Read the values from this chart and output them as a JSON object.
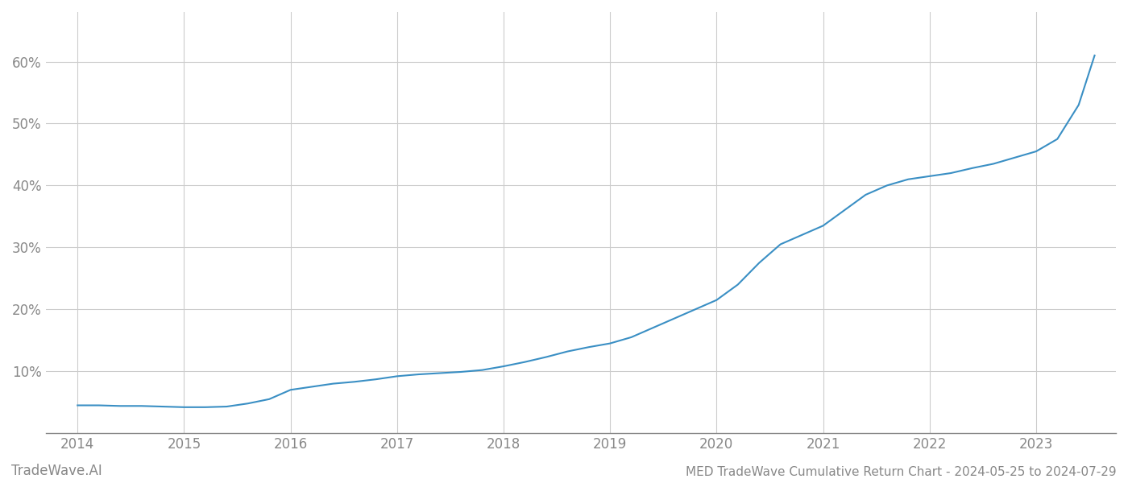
{
  "title": "MED TradeWave Cumulative Return Chart - 2024-05-25 to 2024-07-29",
  "watermark": "TradeWave.AI",
  "x_values": [
    2014.0,
    2014.2,
    2014.4,
    2014.6,
    2014.8,
    2015.0,
    2015.2,
    2015.4,
    2015.6,
    2015.8,
    2016.0,
    2016.2,
    2016.4,
    2016.6,
    2016.8,
    2017.0,
    2017.2,
    2017.4,
    2017.6,
    2017.8,
    2018.0,
    2018.2,
    2018.4,
    2018.6,
    2018.8,
    2019.0,
    2019.2,
    2019.4,
    2019.6,
    2019.8,
    2020.0,
    2020.2,
    2020.4,
    2020.6,
    2020.8,
    2021.0,
    2021.2,
    2021.4,
    2021.6,
    2021.8,
    2022.0,
    2022.2,
    2022.4,
    2022.6,
    2022.8,
    2023.0,
    2023.2,
    2023.4,
    2023.55
  ],
  "y_values": [
    4.5,
    4.5,
    4.4,
    4.4,
    4.3,
    4.2,
    4.2,
    4.3,
    4.8,
    5.5,
    7.0,
    7.5,
    8.0,
    8.3,
    8.7,
    9.2,
    9.5,
    9.7,
    9.9,
    10.2,
    10.8,
    11.5,
    12.3,
    13.2,
    13.9,
    14.5,
    15.5,
    17.0,
    18.5,
    20.0,
    21.5,
    24.0,
    27.5,
    30.5,
    32.0,
    33.5,
    36.0,
    38.5,
    40.0,
    41.0,
    41.5,
    42.0,
    42.8,
    43.5,
    44.5,
    45.5,
    47.5,
    53.0,
    61.0
  ],
  "line_color": "#3a8fc4",
  "line_width": 1.5,
  "background_color": "#ffffff",
  "grid_color": "#cccccc",
  "axis_color": "#888888",
  "tick_label_color": "#888888",
  "watermark_color": "#888888",
  "xlim": [
    2013.7,
    2023.75
  ],
  "ylim": [
    0,
    68
  ],
  "yticks": [
    10,
    20,
    30,
    40,
    50,
    60
  ],
  "xticks": [
    2014,
    2015,
    2016,
    2017,
    2018,
    2019,
    2020,
    2021,
    2022,
    2023
  ],
  "title_fontsize": 11,
  "tick_fontsize": 12,
  "watermark_fontsize": 12
}
